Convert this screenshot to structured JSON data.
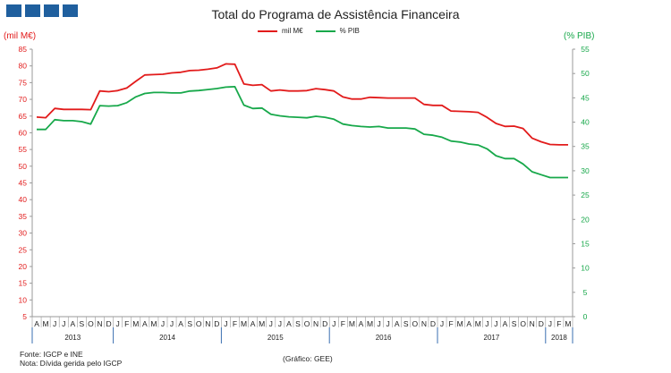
{
  "header": {
    "title": "Total do Programa de Assistência Financeira"
  },
  "logo": {
    "icon": "logo-squares-icon",
    "color": "#1f5f9e"
  },
  "axes": {
    "left_unit": "(mil M€)",
    "right_unit": "(% PIB)",
    "left_ticks": [
      "5",
      "10",
      "15",
      "20",
      "25",
      "30",
      "35",
      "40",
      "45",
      "50",
      "55",
      "60",
      "65",
      "70",
      "75",
      "80",
      "85"
    ],
    "right_ticks": [
      "0",
      "5",
      "10",
      "15",
      "20",
      "25",
      "30",
      "35",
      "40",
      "45",
      "50",
      "55"
    ],
    "month_labels": [
      "A",
      "M",
      "J",
      "J",
      "A",
      "S",
      "O",
      "N",
      "D",
      "J",
      "F",
      "M",
      "A",
      "M",
      "J",
      "J",
      "A",
      "S",
      "O",
      "N",
      "D",
      "J",
      "F",
      "M",
      "A",
      "M",
      "J",
      "J",
      "A",
      "S",
      "O",
      "N",
      "D",
      "J",
      "F",
      "M",
      "A",
      "M",
      "J",
      "J",
      "A",
      "S",
      "O",
      "N",
      "D",
      "J",
      "F",
      "M",
      "A",
      "M",
      "J",
      "J",
      "A",
      "S",
      "O",
      "N",
      "D",
      "J",
      "F",
      "M"
    ],
    "years": [
      {
        "label": "2013",
        "start": 0,
        "end": 9
      },
      {
        "label": "2014",
        "start": 9,
        "end": 21
      },
      {
        "label": "2015",
        "start": 21,
        "end": 33
      },
      {
        "label": "2016",
        "start": 33,
        "end": 45
      },
      {
        "label": "2017",
        "start": 45,
        "end": 57
      },
      {
        "label": "2018",
        "start": 57,
        "end": 60
      }
    ]
  },
  "colors": {
    "mil": "#e21b1b",
    "pib": "#17a84a",
    "axis": "#9a9a9a",
    "year_sep": "#3a6fb0"
  },
  "footer": {
    "source": "Fonte: IGCP e INE",
    "note": "Nota: Dívida gerida pelo IGCP",
    "credit": "(Gráfico: GEE)"
  },
  "chart_data": {
    "type": "line",
    "title": "Total do Programa de Assistência Financeira",
    "x": [
      "2013-04",
      "2013-05",
      "2013-06",
      "2013-07",
      "2013-08",
      "2013-09",
      "2013-10",
      "2013-11",
      "2013-12",
      "2014-01",
      "2014-02",
      "2014-03",
      "2014-04",
      "2014-05",
      "2014-06",
      "2014-07",
      "2014-08",
      "2014-09",
      "2014-10",
      "2014-11",
      "2014-12",
      "2015-01",
      "2015-02",
      "2015-03",
      "2015-04",
      "2015-05",
      "2015-06",
      "2015-07",
      "2015-08",
      "2015-09",
      "2015-10",
      "2015-11",
      "2015-12",
      "2016-01",
      "2016-02",
      "2016-03",
      "2016-04",
      "2016-05",
      "2016-06",
      "2016-07",
      "2016-08",
      "2016-09",
      "2016-10",
      "2016-11",
      "2016-12",
      "2017-01",
      "2017-02",
      "2017-03",
      "2017-04",
      "2017-05",
      "2017-06",
      "2017-07",
      "2017-08",
      "2017-09",
      "2017-10",
      "2017-11",
      "2017-12",
      "2018-01",
      "2018-02",
      "2018-03"
    ],
    "ylabel_left": "(mil M€)",
    "ylabel_right": "(% PIB)",
    "ylim_left": [
      5,
      85
    ],
    "ylim_right": [
      0,
      55
    ],
    "grid": false,
    "legend_position": "top-center",
    "series": [
      {
        "name": "mil M€",
        "axis": "left",
        "color": "#e21b1b",
        "values": [
          64.7,
          64.5,
          67.3,
          67.0,
          67.0,
          67.0,
          66.9,
          72.5,
          72.3,
          72.6,
          73.4,
          75.4,
          77.3,
          77.4,
          77.5,
          77.9,
          78.1,
          78.6,
          78.7,
          79.0,
          79.4,
          80.6,
          80.5,
          74.6,
          74.2,
          74.4,
          72.5,
          72.8,
          72.5,
          72.5,
          72.6,
          73.2,
          72.9,
          72.5,
          70.7,
          70.1,
          70.1,
          70.6,
          70.5,
          70.4,
          70.4,
          70.4,
          70.4,
          68.5,
          68.2,
          68.2,
          66.5,
          66.4,
          66.3,
          66.1,
          64.6,
          62.8,
          61.9,
          62.0,
          61.3,
          58.4,
          57.3,
          56.5,
          56.4,
          56.4
        ]
      },
      {
        "name": "% PIB",
        "axis": "right",
        "color": "#17a84a",
        "values": [
          38.5,
          38.5,
          40.5,
          40.3,
          40.3,
          40.1,
          39.6,
          43.4,
          43.3,
          43.4,
          44.0,
          45.2,
          45.9,
          46.1,
          46.1,
          46.0,
          46.0,
          46.4,
          46.5,
          46.7,
          46.9,
          47.2,
          47.3,
          43.5,
          42.8,
          42.9,
          41.6,
          41.3,
          41.1,
          41.0,
          40.9,
          41.2,
          41.0,
          40.6,
          39.6,
          39.3,
          39.1,
          39.0,
          39.1,
          38.8,
          38.8,
          38.8,
          38.6,
          37.5,
          37.3,
          36.9,
          36.1,
          35.9,
          35.5,
          35.3,
          34.5,
          33.1,
          32.5,
          32.5,
          31.4,
          29.8,
          29.2,
          28.6,
          28.6,
          28.6
        ]
      }
    ]
  }
}
